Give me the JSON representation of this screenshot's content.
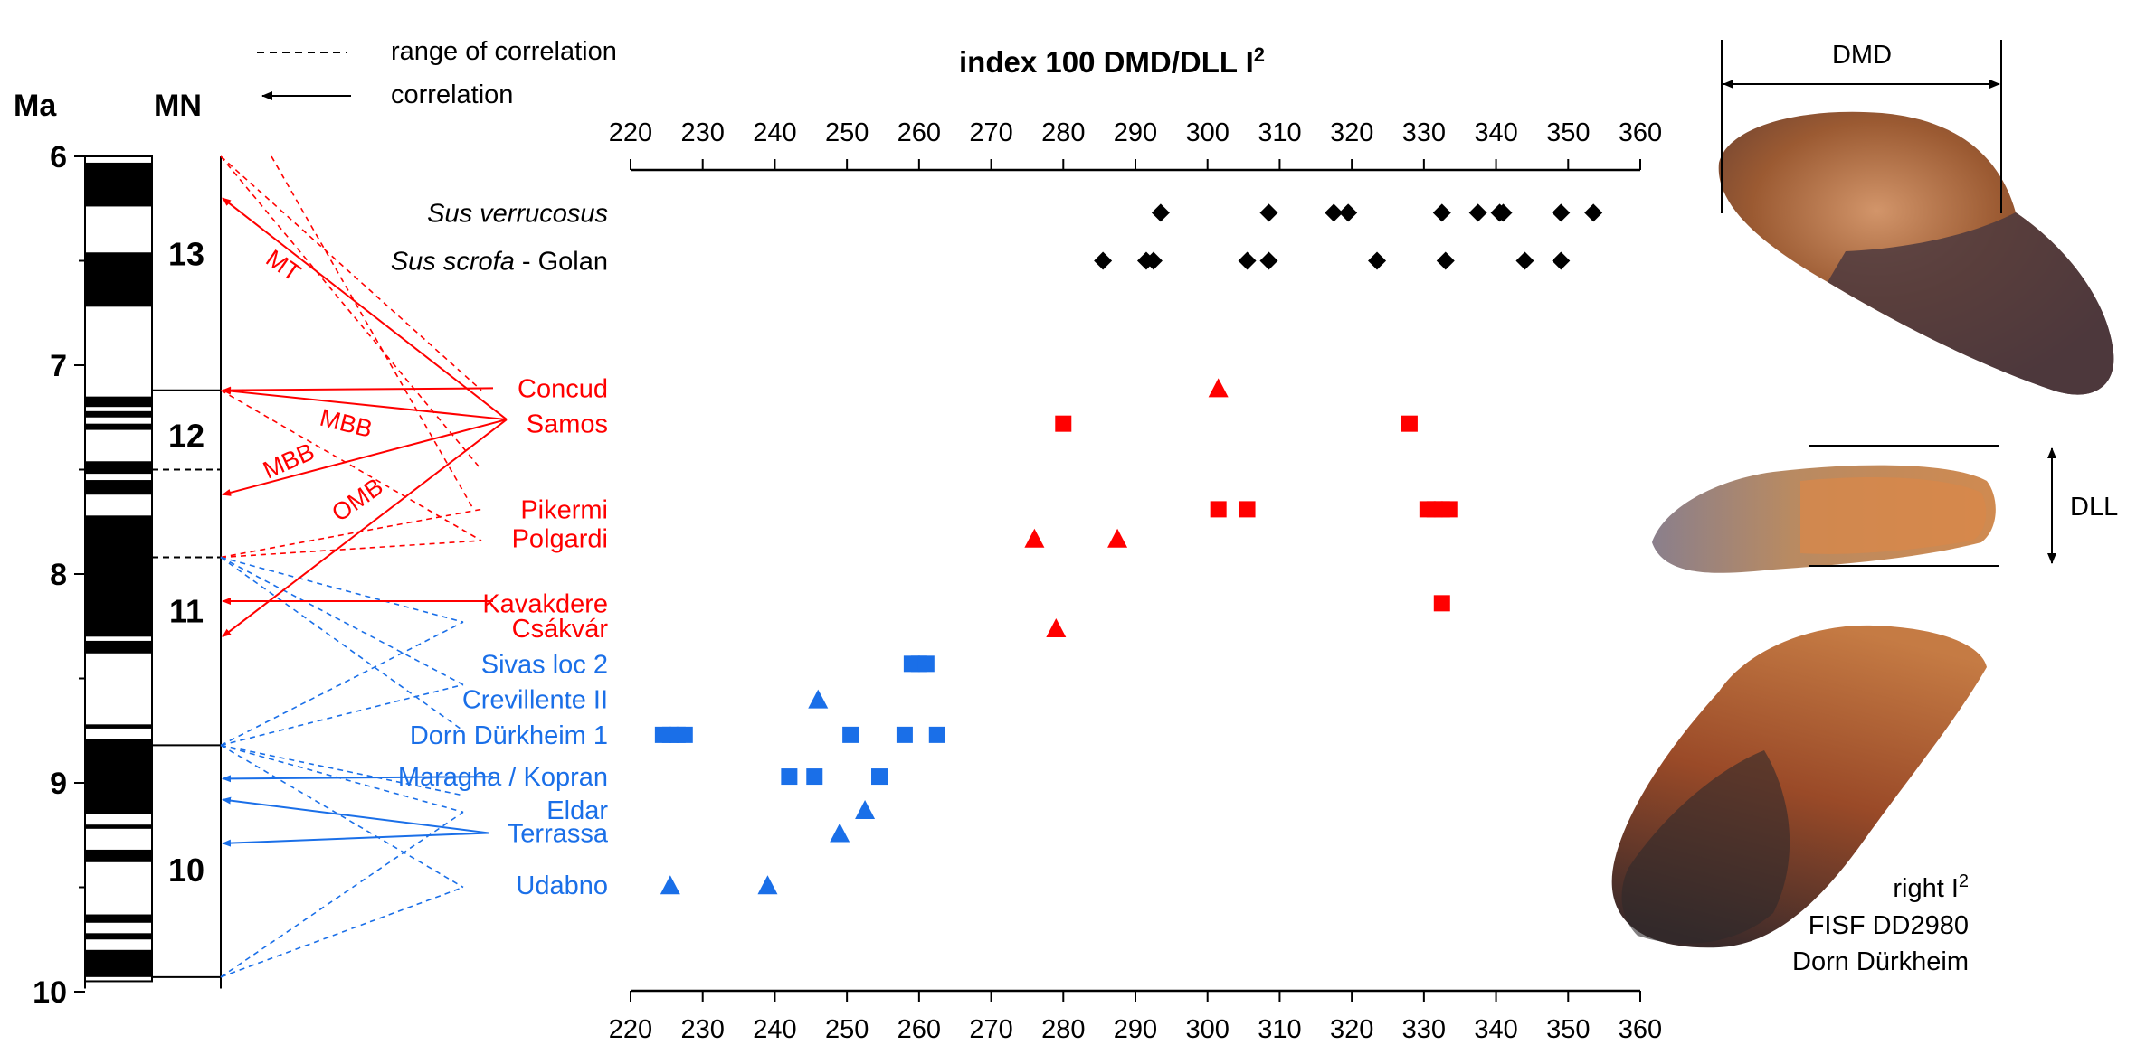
{
  "legend": {
    "dashed_label": "range of correlation",
    "arrow_label": "correlation"
  },
  "stratigraphy": {
    "ma_header": "Ma",
    "mn_header": "MN",
    "ma_ticks": [
      "6",
      "7",
      "8",
      "9",
      "10"
    ],
    "mn_zones": [
      {
        "label": "13",
        "label_ma": 6.47
      },
      {
        "label": "12",
        "label_ma": 7.34
      },
      {
        "label": "11",
        "label_ma": 8.18
      },
      {
        "label": "10",
        "label_ma": 9.42
      }
    ],
    "mn_boundaries_solid": [
      7.12,
      8.82
    ],
    "mn_boundaries_dashed": [
      7.5,
      7.92
    ],
    "black_intervals_ma": [
      [
        6.03,
        6.24
      ],
      [
        6.46,
        6.72
      ],
      [
        7.15,
        7.2
      ],
      [
        7.22,
        7.25
      ],
      [
        7.28,
        7.31
      ],
      [
        7.46,
        7.52
      ],
      [
        7.55,
        7.62
      ],
      [
        7.72,
        8.3
      ],
      [
        8.32,
        8.38
      ],
      [
        8.72,
        8.74
      ],
      [
        8.79,
        9.15
      ],
      [
        9.2,
        9.22
      ],
      [
        9.32,
        9.38
      ],
      [
        9.63,
        9.67
      ],
      [
        9.72,
        9.75
      ],
      [
        9.8,
        9.93
      ]
    ]
  },
  "chart_data": {
    "type": "scatter",
    "title": "index 100 DMD/DLL I",
    "title_superscript": "2",
    "xlim": [
      220,
      360
    ],
    "x_ticks": [
      220,
      230,
      240,
      250,
      260,
      270,
      280,
      290,
      300,
      310,
      320,
      330,
      340,
      350,
      360
    ],
    "grid": false,
    "colors": {
      "modern": "#000000",
      "red": "#ff0000",
      "blue": "#1a6fe8"
    },
    "localities": [
      {
        "name": "Sus verrucosus",
        "italic": "Sus verrucosus",
        "suffix": "",
        "color": "modern",
        "row_ma": 6.27,
        "marker": "diamond",
        "values": [
          293.5,
          308.5,
          317.5,
          319.5,
          332.5,
          337.5,
          340.5,
          341,
          349,
          353.5
        ]
      },
      {
        "name": "Sus scrofa - Golan",
        "italic": "Sus scrofa",
        "suffix": " - Golan",
        "color": "modern",
        "row_ma": 6.5,
        "marker": "diamond",
        "values": [
          285.5,
          291.5,
          292.5,
          305.5,
          308.5,
          323.5,
          333,
          344,
          349
        ]
      },
      {
        "name": "Concud",
        "color": "red",
        "row_ma": 7.11,
        "marker": "triangle",
        "values": [
          301.5
        ]
      },
      {
        "name": "Samos",
        "color": "red",
        "row_ma": 7.28,
        "marker": "square",
        "values": [
          280,
          328
        ]
      },
      {
        "name": "Pikermi",
        "color": "red",
        "row_ma": 7.69,
        "marker": "square",
        "values": [
          301.5,
          305.5,
          330.5,
          331.5,
          332.5,
          333.5
        ]
      },
      {
        "name": "Polgardi",
        "color": "red",
        "row_ma": 7.83,
        "marker": "triangle",
        "values": [
          276,
          287.5
        ]
      },
      {
        "name": "Kavakdere",
        "color": "red",
        "row_ma": 8.14,
        "marker": "square",
        "values": [
          332.5
        ]
      },
      {
        "name": "Csákvár",
        "color": "red",
        "row_ma": 8.26,
        "marker": "triangle",
        "values": [
          279
        ]
      },
      {
        "name": "Sivas loc 2",
        "color": "blue",
        "row_ma": 8.43,
        "marker": "square",
        "values": [
          259,
          260,
          261
        ]
      },
      {
        "name": "Crevillente II",
        "color": "blue",
        "row_ma": 8.6,
        "marker": "triangle",
        "values": [
          246
        ]
      },
      {
        "name": "Dorn Dürkheim 1",
        "color": "blue",
        "row_ma": 8.77,
        "marker": "square",
        "values": [
          224.5,
          225.5,
          226.5,
          227.5,
          250.5,
          258,
          262.5
        ]
      },
      {
        "name": "Maragha / Kopran",
        "color": "blue",
        "row_ma": 8.97,
        "marker": "square",
        "values": [
          242,
          245.5,
          254.5
        ]
      },
      {
        "name": "Eldar",
        "color": "blue",
        "row_ma": 9.13,
        "marker": "triangle",
        "values": [
          252.5
        ]
      },
      {
        "name": "Terrassa",
        "color": "blue",
        "row_ma": 9.24,
        "marker": "triangle",
        "values": [
          249
        ]
      },
      {
        "name": "Udabno",
        "color": "blue",
        "row_ma": 9.49,
        "marker": "triangle",
        "values": [
          225.5,
          239
        ]
      }
    ],
    "correlations": [
      {
        "from_ma": 7.26,
        "to_ma": 6.2,
        "color": "red",
        "style": "arrow",
        "label": "MT"
      },
      {
        "from_ma": 7.26,
        "to_ma": 7.12,
        "color": "red",
        "style": "arrow"
      },
      {
        "from_ma": 7.26,
        "to_ma": 7.62,
        "color": "red",
        "style": "arrow",
        "label": "MBB"
      },
      {
        "from_ma": 7.26,
        "to_ma": 8.3,
        "color": "red",
        "style": "arrow",
        "label": "OMB"
      },
      {
        "from_ma": 7.11,
        "to_ma": 7.12,
        "color": "red",
        "style": "arrow"
      },
      {
        "from_ma": 8.13,
        "to_ma": 8.13,
        "color": "red",
        "style": "arrow"
      },
      {
        "from_ma": 8.97,
        "to_ma": 8.98,
        "color": "blue",
        "style": "arrow"
      },
      {
        "from_ma": 9.24,
        "to_ma": 9.08,
        "color": "blue",
        "style": "arrow"
      },
      {
        "from_ma": 9.24,
        "to_ma": 9.29,
        "color": "blue",
        "style": "arrow"
      }
    ],
    "range_lines_red": [
      [
        6.0,
        7.5
      ],
      [
        7.12,
        7.84
      ],
      [
        7.92,
        7.69
      ],
      [
        7.92,
        7.84
      ],
      [
        6.0,
        7.12
      ]
    ],
    "range_lines_blue": [
      [
        7.92,
        8.23
      ],
      [
        7.92,
        8.53
      ],
      [
        7.92,
        8.75
      ],
      [
        8.82,
        8.23
      ],
      [
        8.82,
        8.53
      ],
      [
        8.82,
        9.06
      ],
      [
        8.82,
        9.14
      ],
      [
        8.82,
        9.5
      ],
      [
        9.93,
        9.14
      ],
      [
        9.93,
        9.5
      ]
    ],
    "mbb_label_2": "MBB"
  },
  "photo_panel": {
    "dmd_label": "DMD",
    "dll_label": "DLL",
    "caption_line1": "right I",
    "caption_superscript": "2",
    "caption_line2": "FISF DD2980",
    "caption_line3": "Dorn Dürkheim"
  }
}
